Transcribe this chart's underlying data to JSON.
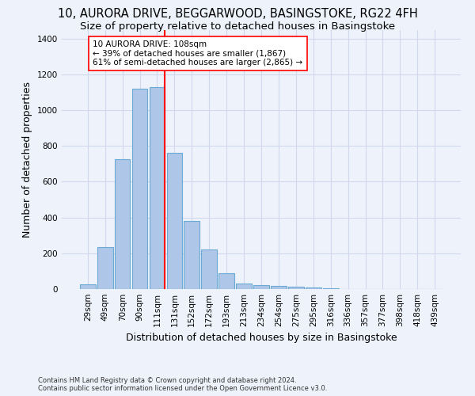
{
  "title_line1": "10, AURORA DRIVE, BEGGARWOOD, BASINGSTOKE, RG22 4FH",
  "title_line2": "Size of property relative to detached houses in Basingstoke",
  "xlabel": "Distribution of detached houses by size in Basingstoke",
  "ylabel": "Number of detached properties",
  "footnote": "Contains HM Land Registry data © Crown copyright and database right 2024.\nContains public sector information licensed under the Open Government Licence v3.0.",
  "categories": [
    "29sqm",
    "49sqm",
    "70sqm",
    "90sqm",
    "111sqm",
    "131sqm",
    "152sqm",
    "172sqm",
    "193sqm",
    "213sqm",
    "234sqm",
    "254sqm",
    "275sqm",
    "295sqm",
    "316sqm",
    "336sqm",
    "357sqm",
    "377sqm",
    "398sqm",
    "418sqm",
    "439sqm"
  ],
  "values": [
    28,
    235,
    725,
    1120,
    1130,
    760,
    380,
    222,
    90,
    30,
    22,
    18,
    15,
    10,
    5,
    0,
    0,
    0,
    0,
    0,
    0
  ],
  "bar_color": "#aec6e8",
  "bar_edge_color": "#6aaad4",
  "reference_line_color": "red",
  "reference_line_x": 4.45,
  "annotation_text": "10 AURORA DRIVE: 108sqm\n← 39% of detached houses are smaller (1,867)\n61% of semi-detached houses are larger (2,865) →",
  "annotation_box_color": "white",
  "annotation_box_edge_color": "red",
  "ylim": [
    0,
    1450
  ],
  "yticks": [
    0,
    200,
    400,
    600,
    800,
    1000,
    1200,
    1400
  ],
  "background_color": "#eef2fb",
  "grid_color": "#d0d8ee",
  "title_fontsize": 10.5,
  "subtitle_fontsize": 9.5,
  "ylabel_fontsize": 9,
  "xlabel_fontsize": 9,
  "tick_fontsize": 7.5,
  "annotation_fontsize": 7.5,
  "footnote_fontsize": 6.0
}
